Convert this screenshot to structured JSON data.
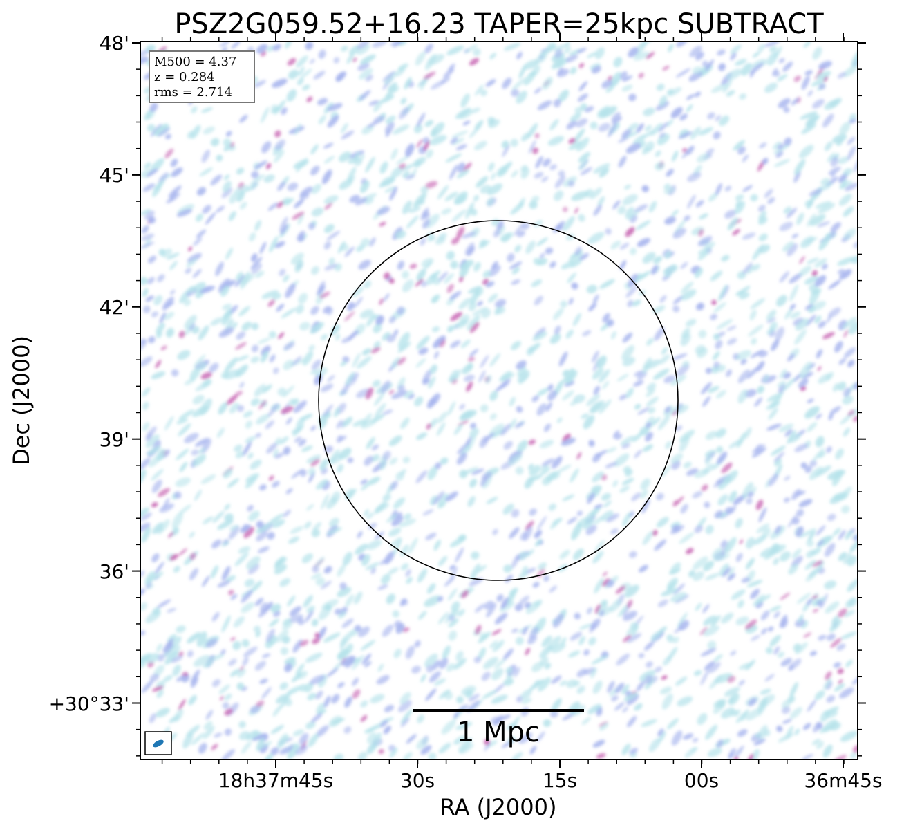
{
  "chart_data": {
    "type": "heatmap",
    "title": "PSZ2G059.52+16.23 TAPER=25kpc SUBTRACT",
    "xlabel": "RA (J2000)",
    "ylabel": "Dec (J2000)",
    "x_tick_labels": [
      "18h37m45s",
      "30s",
      "15s",
      "00s",
      "36m45s"
    ],
    "y_tick_labels": [
      "48'",
      "45'",
      "42'",
      "39'",
      "36'",
      "+30°33'"
    ],
    "info_box": {
      "m500": "M500 = 4.37",
      "z": "z = 0.284",
      "rms": "rms = 2.714"
    },
    "scalebar_label": "1 Mpc",
    "circle_label": "",
    "grid": false,
    "colors": {
      "noise_low": "#b4e2ea",
      "noise_mid": "#a6b4ee",
      "noise_high": "#c868b4",
      "beam": "#1f77b4",
      "frame": "#000000"
    }
  }
}
